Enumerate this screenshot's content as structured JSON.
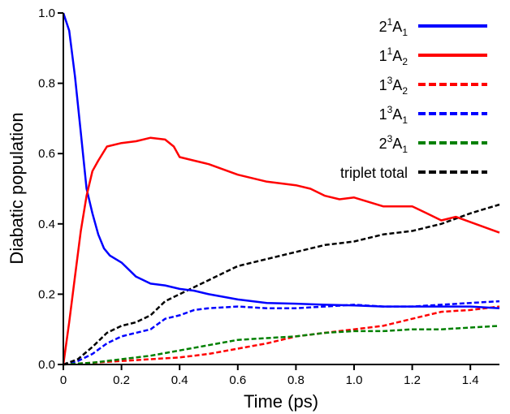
{
  "chart_data": {
    "type": "line",
    "xlabel": "Time (ps)",
    "ylabel": "Diabatic population",
    "xlim": [
      0,
      1.5
    ],
    "ylim": [
      0,
      1.0
    ],
    "xticks": [
      "0",
      "0.2",
      "0.4",
      "0.6",
      "0.8",
      "1.0",
      "1.2",
      "1.4"
    ],
    "yticks": [
      "0.0",
      "0.2",
      "0.4",
      "0.6",
      "0.8",
      "1.0"
    ],
    "grid": false,
    "legend_position": "top-right",
    "series": [
      {
        "name": "2¹A₁",
        "label": {
          "base": "2",
          "sup": "1",
          "mid": "A",
          "sub": "1"
        },
        "color": "#0000ff",
        "dashed": false,
        "x": [
          0,
          0.02,
          0.04,
          0.06,
          0.08,
          0.1,
          0.12,
          0.14,
          0.16,
          0.2,
          0.25,
          0.3,
          0.35,
          0.4,
          0.45,
          0.5,
          0.6,
          0.7,
          0.8,
          0.9,
          1.0,
          1.1,
          1.2,
          1.3,
          1.4,
          1.5
        ],
        "y": [
          1.0,
          0.95,
          0.82,
          0.66,
          0.5,
          0.43,
          0.37,
          0.33,
          0.31,
          0.29,
          0.25,
          0.23,
          0.225,
          0.215,
          0.21,
          0.2,
          0.185,
          0.175,
          0.173,
          0.17,
          0.168,
          0.165,
          0.165,
          0.165,
          0.165,
          0.16
        ]
      },
      {
        "name": "1¹A₂",
        "label": {
          "base": "1",
          "sup": "1",
          "mid": "A",
          "sub": "2"
        },
        "color": "#ff0000",
        "dashed": false,
        "x": [
          0,
          0.02,
          0.04,
          0.06,
          0.08,
          0.1,
          0.12,
          0.15,
          0.2,
          0.25,
          0.3,
          0.35,
          0.38,
          0.4,
          0.45,
          0.5,
          0.55,
          0.6,
          0.7,
          0.8,
          0.85,
          0.9,
          0.95,
          1.0,
          1.1,
          1.2,
          1.25,
          1.3,
          1.35,
          1.4,
          1.45,
          1.5
        ],
        "y": [
          0,
          0.12,
          0.25,
          0.38,
          0.48,
          0.55,
          0.58,
          0.62,
          0.63,
          0.635,
          0.645,
          0.64,
          0.62,
          0.59,
          0.58,
          0.57,
          0.555,
          0.54,
          0.52,
          0.51,
          0.5,
          0.48,
          0.47,
          0.475,
          0.45,
          0.45,
          0.43,
          0.41,
          0.42,
          0.405,
          0.39,
          0.375
        ]
      },
      {
        "name": "1³A₂",
        "label": {
          "base": "1",
          "sup": "3",
          "mid": "A",
          "sub": "2"
        },
        "color": "#ff0000",
        "dashed": true,
        "x": [
          0,
          0.1,
          0.2,
          0.3,
          0.4,
          0.5,
          0.6,
          0.7,
          0.8,
          0.9,
          1.0,
          1.1,
          1.2,
          1.3,
          1.4,
          1.5
        ],
        "y": [
          0,
          0.005,
          0.01,
          0.015,
          0.02,
          0.03,
          0.045,
          0.06,
          0.08,
          0.09,
          0.1,
          0.11,
          0.13,
          0.15,
          0.155,
          0.165
        ]
      },
      {
        "name": "1³A₁",
        "label": {
          "base": "1",
          "sup": "3",
          "mid": "A",
          "sub": "1"
        },
        "color": "#0000ff",
        "dashed": true,
        "x": [
          0,
          0.05,
          0.1,
          0.15,
          0.2,
          0.25,
          0.3,
          0.35,
          0.4,
          0.45,
          0.5,
          0.6,
          0.7,
          0.8,
          0.9,
          1.0,
          1.1,
          1.2,
          1.3,
          1.4,
          1.5
        ],
        "y": [
          0,
          0.01,
          0.03,
          0.06,
          0.08,
          0.09,
          0.1,
          0.13,
          0.14,
          0.155,
          0.16,
          0.165,
          0.16,
          0.16,
          0.165,
          0.17,
          0.165,
          0.165,
          0.17,
          0.175,
          0.18
        ]
      },
      {
        "name": "2³A₁",
        "label": {
          "base": "2",
          "sup": "3",
          "mid": "A",
          "sub": "1"
        },
        "color": "#008000",
        "dashed": true,
        "x": [
          0,
          0.1,
          0.2,
          0.3,
          0.4,
          0.5,
          0.6,
          0.7,
          0.8,
          0.9,
          1.0,
          1.1,
          1.2,
          1.3,
          1.4,
          1.5
        ],
        "y": [
          0,
          0.005,
          0.015,
          0.025,
          0.04,
          0.055,
          0.07,
          0.075,
          0.08,
          0.09,
          0.095,
          0.095,
          0.1,
          0.1,
          0.105,
          0.11
        ]
      },
      {
        "name": "triplet total",
        "label": {
          "base": "triplet total",
          "sup": "",
          "mid": "",
          "sub": ""
        },
        "color": "#000000",
        "dashed": true,
        "x": [
          0,
          0.05,
          0.1,
          0.15,
          0.2,
          0.25,
          0.3,
          0.35,
          0.4,
          0.45,
          0.5,
          0.55,
          0.6,
          0.7,
          0.8,
          0.9,
          1.0,
          1.1,
          1.2,
          1.3,
          1.4,
          1.5
        ],
        "y": [
          0,
          0.015,
          0.05,
          0.09,
          0.11,
          0.12,
          0.14,
          0.18,
          0.2,
          0.22,
          0.24,
          0.26,
          0.28,
          0.3,
          0.32,
          0.34,
          0.35,
          0.37,
          0.38,
          0.4,
          0.43,
          0.455
        ]
      }
    ]
  }
}
